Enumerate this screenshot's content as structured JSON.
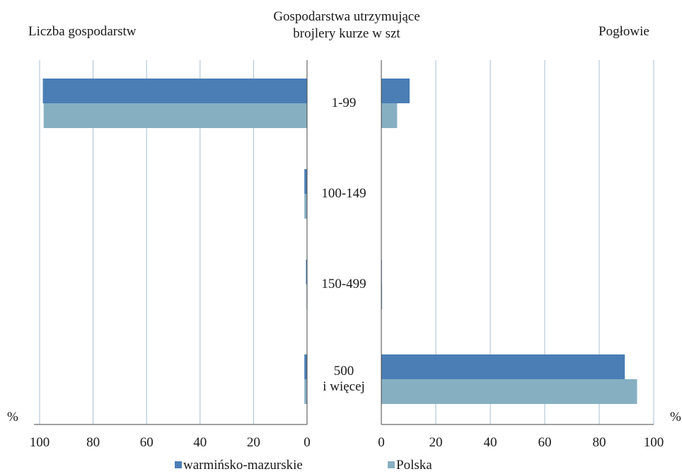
{
  "chart_data": {
    "type": "bar",
    "orientation": "horizontal",
    "layout": "butterfly",
    "center_title": [
      "Gospodarstwa utrzymujące",
      "brojlery kurze w szt"
    ],
    "categories": [
      "1-99",
      "100-149",
      "150-499",
      "500 i więcej"
    ],
    "category_lines": [
      [
        "1-99"
      ],
      [
        "100-149"
      ],
      [
        "150-499"
      ],
      [
        "500",
        "i więcej"
      ]
    ],
    "left_panel": {
      "title": "Liczba gospodarstw",
      "unit": "%",
      "xlim": [
        100,
        0
      ],
      "ticks": [
        "100",
        "80",
        "60",
        "40",
        "20",
        "0"
      ],
      "series": [
        {
          "name": "warmińsko-mazurskie",
          "values": [
            98.8,
            1.0,
            0.4,
            1.0
          ]
        },
        {
          "name": "Polska",
          "values": [
            98.5,
            1.0,
            0.2,
            1.0
          ]
        }
      ]
    },
    "right_panel": {
      "title": "Pogłowie",
      "unit": "%",
      "xlim": [
        0,
        100
      ],
      "ticks": [
        "0",
        "20",
        "40",
        "60",
        "80",
        "100"
      ],
      "series": [
        {
          "name": "warmińsko-mazurskie",
          "values": [
            10.4,
            0.0,
            0.2,
            89.4
          ]
        },
        {
          "name": "Polska",
          "values": [
            5.8,
            0.0,
            0.3,
            93.9
          ]
        }
      ]
    },
    "legend": {
      "position": "bottom",
      "labels": [
        "warmińsko-mazurskie",
        "Polska"
      ]
    },
    "colors": {
      "warmińsko-mazurskie": "#4a7eb5",
      "Polska": "#86b0c2",
      "grid": "#a7bfd2",
      "axis": "#444444"
    },
    "grid": true
  }
}
